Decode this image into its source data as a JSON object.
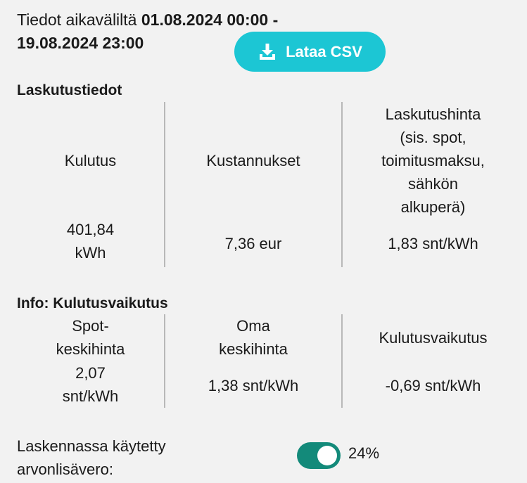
{
  "header": {
    "prefix": "Tiedot aikaväliltä ",
    "range_start": "01.08.2024 00:00 -",
    "range_end": "19.08.2024 23:00"
  },
  "download_button": {
    "label": "Lataa CSV",
    "icon": "download-icon",
    "color": "#1cc6d4"
  },
  "billing": {
    "title": "Laskutustiedot",
    "columns": [
      {
        "header": "Kulutus",
        "value": "401,84\nkWh"
      },
      {
        "header": "Kustannukset",
        "value": "7,36 eur"
      },
      {
        "header": "Laskutushinta\n(sis. spot,\ntoimitusmaksu,\nsähkön\nalkuperä)",
        "value": "1,83 snt/kWh"
      }
    ]
  },
  "impact": {
    "title": "Info: Kulutusvaikutus",
    "columns": [
      {
        "header": "Spot-\nkeskihinta",
        "value": "2,07\nsnt/kWh"
      },
      {
        "header": "Oma\nkeskihinta",
        "value": "1,38 snt/kWh"
      },
      {
        "header": "Kulutusvaikutus",
        "value": "-0,69 snt/kWh"
      }
    ]
  },
  "vat": {
    "label": "Laskennassa käytetty arvonlisävero:",
    "enabled": true,
    "value": "24%",
    "toggle_color": "#138a7a"
  }
}
